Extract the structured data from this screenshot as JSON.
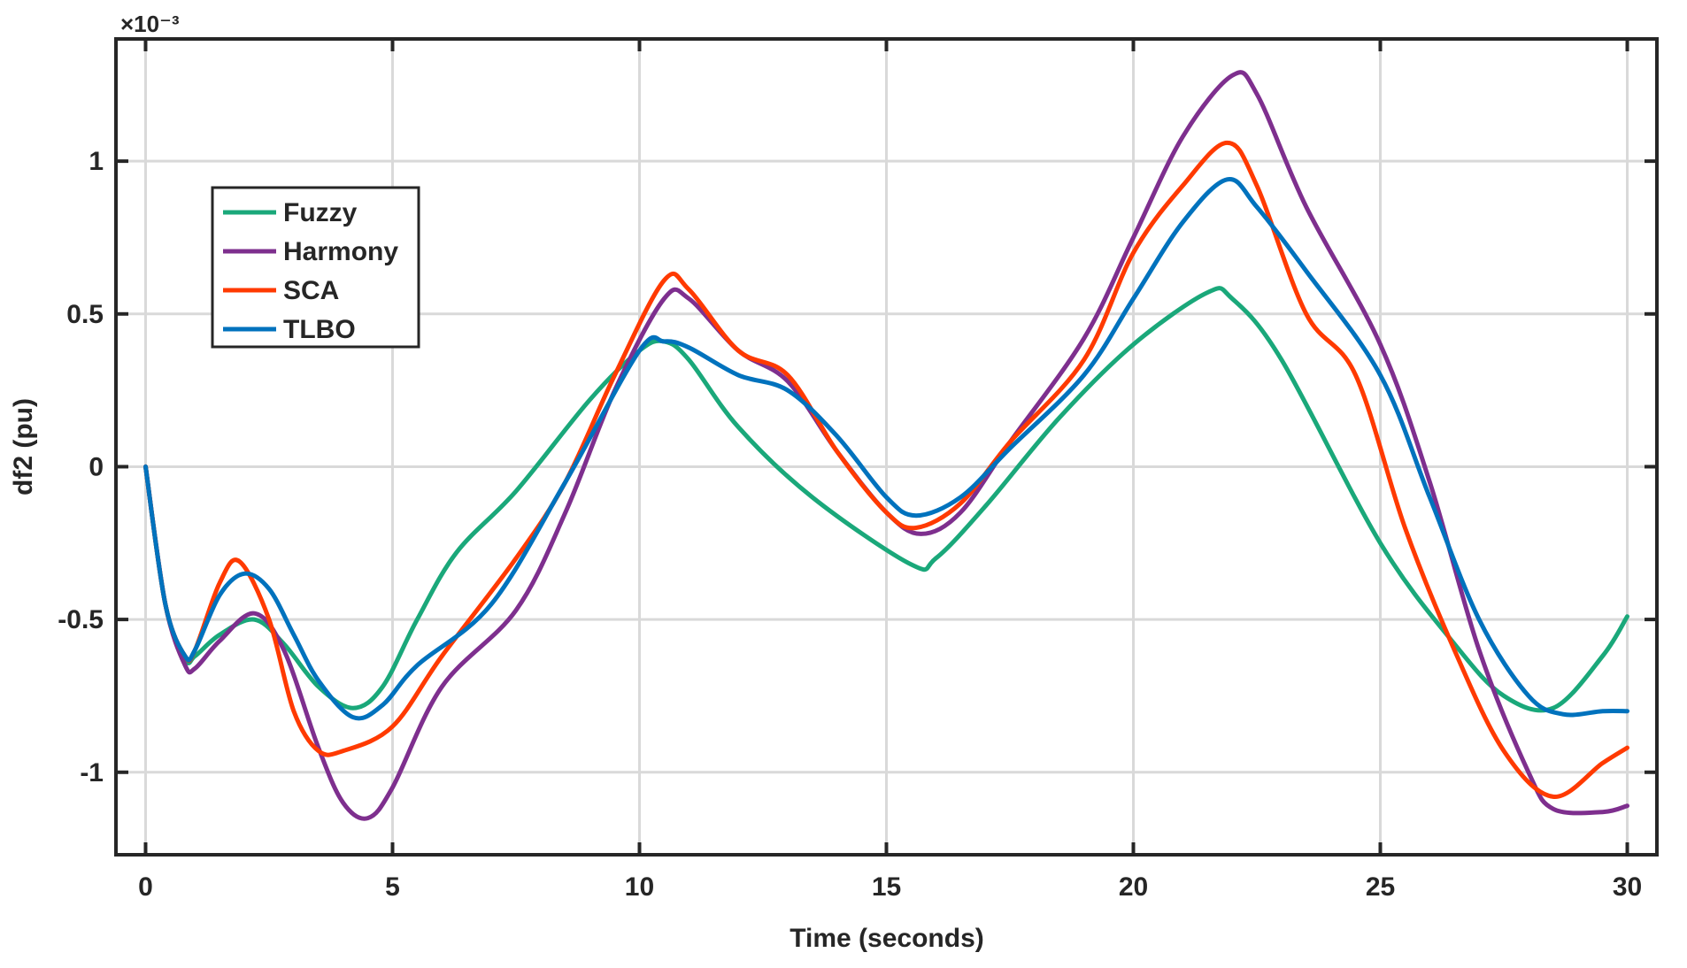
{
  "chart_data": {
    "type": "line",
    "title": "",
    "xlabel": "Time (seconds)",
    "ylabel": "df2 (pu)",
    "exponent_label": "×10⁻³",
    "xlim": [
      -0.6,
      30.6
    ],
    "ylim": [
      -1.27,
      1.4
    ],
    "grid": true,
    "legend_position": "top-left",
    "xticks": [
      0,
      5,
      10,
      15,
      20,
      25,
      30
    ],
    "xtick_labels": [
      "0",
      "5",
      "10",
      "15",
      "20",
      "25",
      "30"
    ],
    "yticks": [
      -1,
      -0.5,
      0,
      0.5,
      1
    ],
    "ytick_labels": [
      "-1",
      "-0.5",
      "0",
      "0.5",
      "1"
    ],
    "series": [
      {
        "name": "Fuzzy",
        "color": "#1aa87a",
        "x": [
          0,
          0.4,
          0.8,
          1.0,
          1.5,
          2.2,
          2.8,
          3.5,
          4.2,
          4.8,
          5.5,
          6.3,
          7.5,
          9.0,
          10.0,
          10.5,
          11.0,
          12.0,
          13.5,
          15.5,
          16.0,
          17.0,
          18.5,
          20.0,
          21.5,
          22.0,
          23.0,
          25.0,
          26.5,
          27.5,
          28.5,
          29.5,
          30.0
        ],
        "y": [
          0,
          -0.45,
          -0.63,
          -0.62,
          -0.55,
          -0.5,
          -0.58,
          -0.72,
          -0.79,
          -0.72,
          -0.5,
          -0.28,
          -0.08,
          0.22,
          0.38,
          0.41,
          0.35,
          0.13,
          -0.1,
          -0.32,
          -0.3,
          -0.13,
          0.16,
          0.4,
          0.57,
          0.55,
          0.35,
          -0.25,
          -0.58,
          -0.75,
          -0.79,
          -0.62,
          -0.49
        ]
      },
      {
        "name": "Harmony",
        "color": "#7e2f8e",
        "x": [
          0,
          0.4,
          0.8,
          1.0,
          1.5,
          2.2,
          2.8,
          3.5,
          4.0,
          4.5,
          5.0,
          6.0,
          7.5,
          8.5,
          9.5,
          10.5,
          11.0,
          12.0,
          13.0,
          14.0,
          15.0,
          15.7,
          16.5,
          17.5,
          19.0,
          20.0,
          21.0,
          22.0,
          22.5,
          23.5,
          25.0,
          26.0,
          27.0,
          28.0,
          28.5,
          29.5,
          30.0
        ],
        "y": [
          0,
          -0.45,
          -0.65,
          -0.66,
          -0.57,
          -0.48,
          -0.6,
          -0.92,
          -1.1,
          -1.15,
          -1.05,
          -0.72,
          -0.47,
          -0.15,
          0.25,
          0.55,
          0.55,
          0.38,
          0.28,
          0.05,
          -0.15,
          -0.22,
          -0.15,
          0.08,
          0.42,
          0.75,
          1.08,
          1.28,
          1.22,
          0.85,
          0.4,
          -0.05,
          -0.6,
          -1.0,
          -1.12,
          -1.13,
          -1.11
        ]
      },
      {
        "name": "SCA",
        "color": "#ff3a00",
        "x": [
          0,
          0.4,
          0.8,
          1.0,
          1.5,
          1.9,
          2.5,
          3.0,
          3.5,
          4.0,
          5.0,
          6.0,
          7.5,
          8.5,
          9.5,
          10.5,
          11.0,
          12.0,
          13.0,
          14.0,
          15.0,
          15.6,
          16.5,
          17.5,
          19.0,
          20.0,
          21.0,
          21.9,
          22.5,
          23.5,
          24.5,
          25.5,
          26.5,
          27.5,
          28.5,
          29.5,
          30.0
        ],
        "y": [
          0,
          -0.45,
          -0.62,
          -0.6,
          -0.38,
          -0.31,
          -0.5,
          -0.8,
          -0.93,
          -0.93,
          -0.85,
          -0.62,
          -0.3,
          -0.05,
          0.3,
          0.61,
          0.58,
          0.38,
          0.3,
          0.05,
          -0.15,
          -0.2,
          -0.12,
          0.08,
          0.35,
          0.7,
          0.92,
          1.06,
          0.92,
          0.5,
          0.3,
          -0.2,
          -0.6,
          -0.93,
          -1.08,
          -0.97,
          -0.92
        ]
      },
      {
        "name": "TLBO",
        "color": "#0072bd",
        "x": [
          0,
          0.4,
          0.8,
          1.0,
          1.5,
          2.0,
          2.5,
          3.0,
          3.5,
          4.2,
          4.8,
          5.5,
          7.0,
          8.5,
          10.0,
          10.5,
          11.0,
          12.0,
          13.0,
          14.0,
          15.0,
          15.6,
          16.5,
          17.5,
          19.0,
          20.0,
          21.0,
          21.9,
          22.5,
          23.5,
          25.0,
          26.0,
          27.0,
          28.0,
          28.7,
          29.5,
          30.0
        ],
        "y": [
          0,
          -0.45,
          -0.62,
          -0.6,
          -0.42,
          -0.35,
          -0.4,
          -0.55,
          -0.7,
          -0.82,
          -0.78,
          -0.65,
          -0.45,
          -0.05,
          0.38,
          0.41,
          0.39,
          0.3,
          0.25,
          0.1,
          -0.1,
          -0.16,
          -0.1,
          0.06,
          0.3,
          0.55,
          0.8,
          0.94,
          0.85,
          0.64,
          0.3,
          -0.1,
          -0.5,
          -0.75,
          -0.81,
          -0.8,
          -0.8
        ]
      }
    ]
  }
}
